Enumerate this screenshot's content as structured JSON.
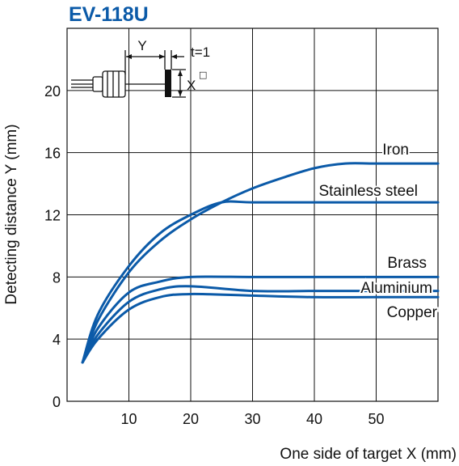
{
  "colors": {
    "series": "#0b5aa8",
    "title": "#0b5aa8",
    "axis": "#111111",
    "grid": "#111111",
    "background": "#ffffff"
  },
  "chart_data": {
    "type": "line",
    "title": "EV-118U",
    "xlabel": "One side of target X (mm)",
    "ylabel": "Detecting distance Y (mm)",
    "xlim": [
      0,
      60
    ],
    "ylim": [
      0,
      24
    ],
    "xticks": [
      10,
      20,
      30,
      40,
      50
    ],
    "yticks": [
      0,
      4,
      8,
      12,
      16,
      20
    ],
    "grid": true,
    "inset": {
      "y_label": "Y",
      "t_label": "t=1",
      "x_label": "X",
      "x_superscript": "□"
    },
    "series": [
      {
        "name": "Iron",
        "x": [
          2.5,
          5,
          10,
          15,
          20,
          25,
          30,
          35,
          40,
          45,
          50,
          60
        ],
        "y": [
          2.5,
          5.2,
          8.3,
          10.3,
          11.7,
          12.8,
          13.7,
          14.4,
          15.0,
          15.3,
          15.3,
          15.3
        ]
      },
      {
        "name": "Stainless steel",
        "x": [
          2.5,
          5,
          10,
          15,
          20,
          25,
          30,
          40,
          50,
          60
        ],
        "y": [
          2.5,
          5.6,
          8.7,
          10.8,
          12.0,
          12.8,
          12.8,
          12.8,
          12.8,
          12.8
        ]
      },
      {
        "name": "Brass",
        "x": [
          2.5,
          5,
          10,
          15,
          20,
          30,
          40,
          50,
          60
        ],
        "y": [
          2.5,
          4.7,
          7.0,
          7.7,
          8.0,
          8.0,
          8.0,
          8.0,
          8.0
        ]
      },
      {
        "name": "Aluminium",
        "x": [
          2.5,
          5,
          10,
          15,
          20,
          30,
          40,
          50,
          60
        ],
        "y": [
          2.5,
          4.3,
          6.4,
          7.2,
          7.4,
          7.1,
          7.1,
          7.1,
          7.1
        ]
      },
      {
        "name": "Copper",
        "x": [
          2.5,
          5,
          10,
          15,
          20,
          30,
          40,
          50,
          60
        ],
        "y": [
          2.5,
          4.0,
          5.9,
          6.7,
          6.9,
          6.8,
          6.7,
          6.7,
          6.7
        ]
      }
    ]
  }
}
